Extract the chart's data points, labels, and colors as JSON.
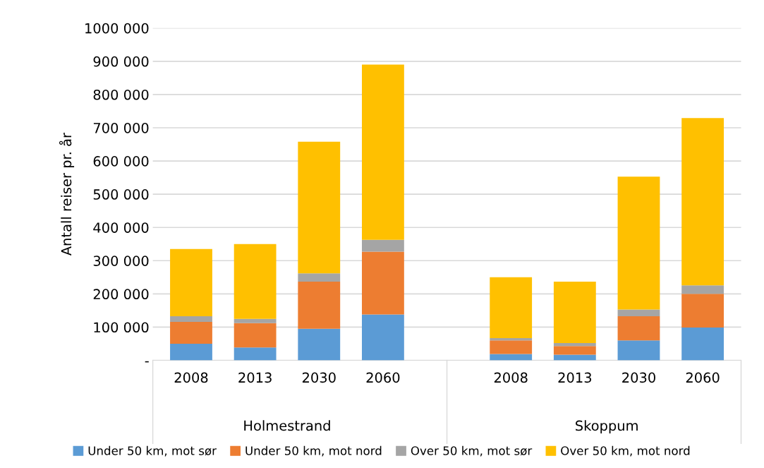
{
  "chart_data": {
    "type": "bar",
    "stacked": true,
    "ylabel": "Antall reiser pr. år",
    "categories": [
      "2008",
      "2013",
      "2030",
      "2060",
      null,
      "2008",
      "2013",
      "2030",
      "2060"
    ],
    "series": [
      {
        "name": "Under 50 km, mot sør",
        "color": "#5b9bd5",
        "values": [
          50000,
          39000,
          95000,
          138000,
          null,
          19000,
          17000,
          60000,
          99000
        ]
      },
      {
        "name": "Under 50 km, mot nord",
        "color": "#ed7d31",
        "values": [
          66000,
          73000,
          142000,
          189000,
          null,
          41000,
          26000,
          73000,
          101000
        ]
      },
      {
        "name": "Over 50 km, mot sør",
        "color": "#a5a5a5",
        "values": [
          17000,
          13000,
          25000,
          36000,
          null,
          7000,
          9000,
          20000,
          26000
        ]
      },
      {
        "name": "Over 50 km, mot nord",
        "color": "#ffc000",
        "values": [
          202000,
          225000,
          396000,
          527000,
          null,
          183000,
          185000,
          400000,
          503000
        ]
      }
    ],
    "ylim": [
      0,
      1000000
    ],
    "yticks": [
      {
        "value": 0,
        "label": "-"
      },
      {
        "value": 100000,
        "label": "100 000"
      },
      {
        "value": 200000,
        "label": "200 000"
      },
      {
        "value": 300000,
        "label": "300 000"
      },
      {
        "value": 400000,
        "label": "400 000"
      },
      {
        "value": 500000,
        "label": "500 000"
      },
      {
        "value": 600000,
        "label": "600 000"
      },
      {
        "value": 700000,
        "label": "700 000"
      },
      {
        "value": 800000,
        "label": "800 000"
      },
      {
        "value": 900000,
        "label": "900 000"
      },
      {
        "value": 1000000,
        "label": "1000 000"
      }
    ],
    "annotations": [
      "Holmestrand",
      "Skoppum"
    ],
    "grid": "y",
    "legend": "bottom"
  }
}
